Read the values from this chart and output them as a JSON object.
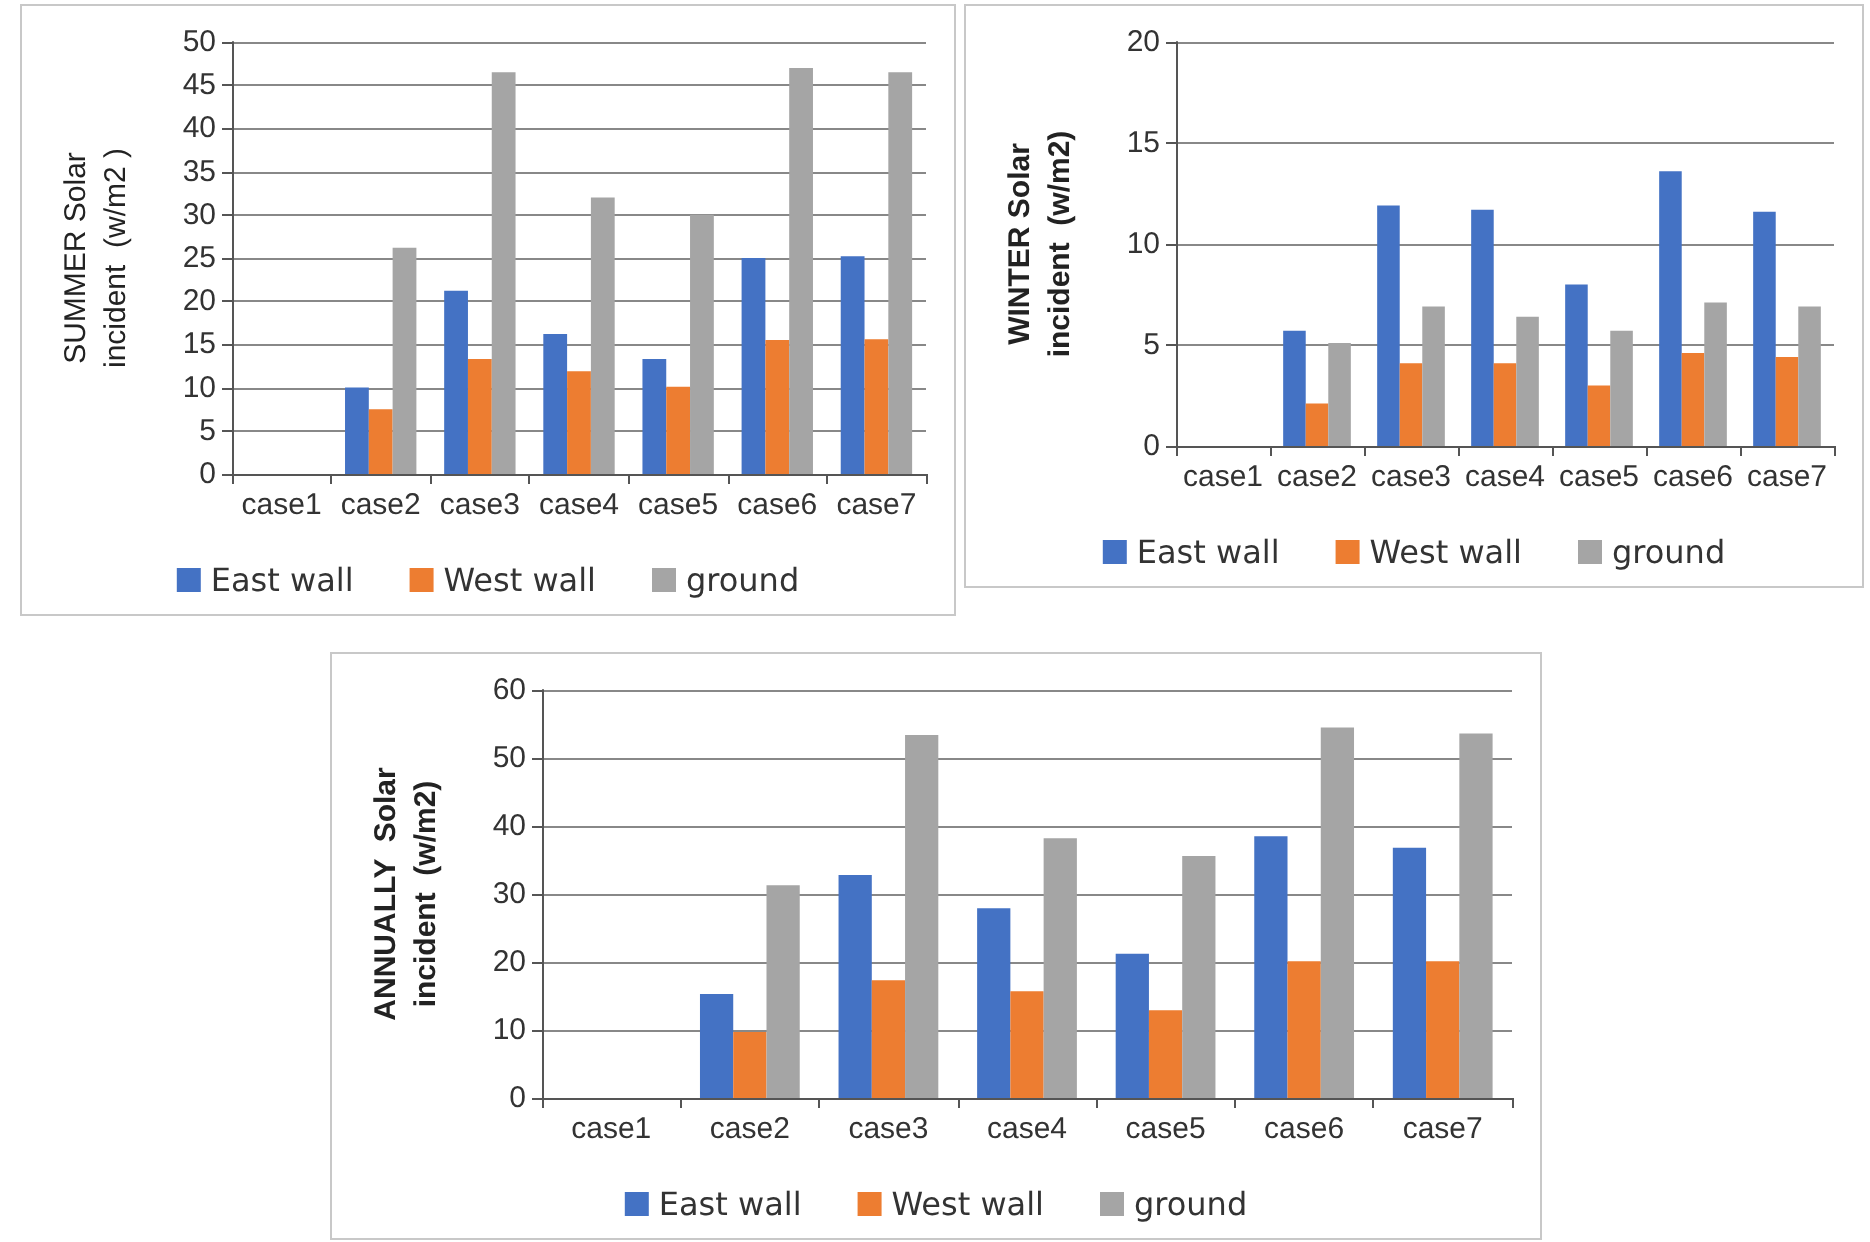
{
  "chart_data": [
    {
      "type": "bar",
      "ylabel": "SUMMER Solar\nincident  (w/m2 )",
      "categories": [
        "case1",
        "case2",
        "case3",
        "case4",
        "case5",
        "case6",
        "case7"
      ],
      "series": [
        {
          "name": "East wall",
          "color": "#4472c4",
          "values": [
            0,
            10,
            21.2,
            16.2,
            13.3,
            25,
            25.2
          ]
        },
        {
          "name": "West wall",
          "color": "#ed7d31",
          "values": [
            0,
            7.5,
            13.3,
            11.9,
            10.1,
            15.5,
            15.6
          ]
        },
        {
          "name": "ground",
          "color": "#a5a5a5",
          "values": [
            0,
            26.2,
            46.5,
            32,
            30,
            47,
            46.5
          ]
        }
      ],
      "ylim": [
        0,
        50
      ],
      "yticks": [
        0,
        5,
        10,
        15,
        20,
        25,
        30,
        35,
        40,
        45,
        50
      ],
      "grid": "y",
      "legend": "bottom"
    },
    {
      "type": "bar",
      "ylabel": "WINTER Solar\nincident  (w/m2)",
      "categories": [
        "case1",
        "case2",
        "case3",
        "case4",
        "case5",
        "case6",
        "case7"
      ],
      "series": [
        {
          "name": "East wall",
          "color": "#4472c4",
          "values": [
            0,
            5.7,
            11.9,
            11.7,
            8,
            13.6,
            11.6
          ]
        },
        {
          "name": "West wall",
          "color": "#ed7d31",
          "values": [
            0,
            2.1,
            4.1,
            4.1,
            3,
            4.6,
            4.4
          ]
        },
        {
          "name": "ground",
          "color": "#a5a5a5",
          "values": [
            0,
            5.1,
            6.9,
            6.4,
            5.7,
            7.1,
            6.9
          ]
        }
      ],
      "ylim": [
        0,
        20
      ],
      "yticks": [
        0,
        5,
        10,
        15,
        20
      ],
      "grid": "y",
      "legend": "bottom"
    },
    {
      "type": "bar",
      "ylabel": "ANNUALLY  Solar\nincident  (w/m2)",
      "categories": [
        "case1",
        "case2",
        "case3",
        "case4",
        "case5",
        "case6",
        "case7"
      ],
      "series": [
        {
          "name": "East wall",
          "color": "#4472c4",
          "values": [
            0,
            15.3,
            32.8,
            27.9,
            21.2,
            38.5,
            36.8
          ]
        },
        {
          "name": "West wall",
          "color": "#ed7d31",
          "values": [
            0,
            9.7,
            17.3,
            15.7,
            12.9,
            20.1,
            20.1
          ]
        },
        {
          "name": "ground",
          "color": "#a5a5a5",
          "values": [
            0,
            31.3,
            53.4,
            38.2,
            35.6,
            54.5,
            53.6
          ]
        }
      ],
      "ylim": [
        0,
        60
      ],
      "yticks": [
        0,
        10,
        20,
        30,
        40,
        50,
        60
      ],
      "grid": "y",
      "legend": "bottom"
    }
  ]
}
